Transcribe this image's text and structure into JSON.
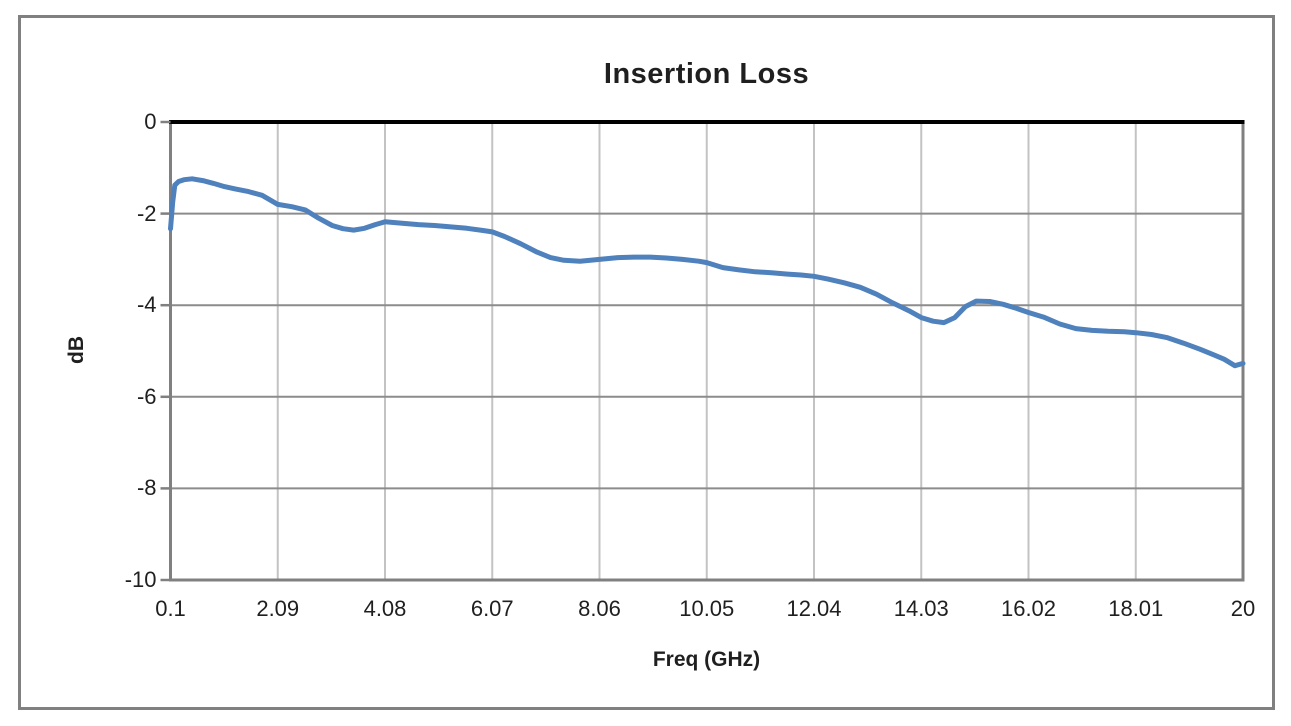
{
  "chart_data": {
    "type": "line",
    "title": "Insertion Loss",
    "xlabel": "Freq (GHz)",
    "ylabel": "dB",
    "x_tick_labels": [
      "0.1",
      "2.09",
      "4.08",
      "6.07",
      "8.06",
      "10.05",
      "12.04",
      "14.03",
      "16.02",
      "18.01",
      "20"
    ],
    "x_tick_values": [
      0.1,
      2.09,
      4.08,
      6.07,
      8.06,
      10.05,
      12.04,
      14.03,
      16.02,
      18.01,
      20
    ],
    "y_tick_labels": [
      "0",
      "-2",
      "-4",
      "-6",
      "-8",
      "-10"
    ],
    "y_tick_values": [
      0,
      -2,
      -4,
      -6,
      -8,
      -10
    ],
    "xlim": [
      0.1,
      20
    ],
    "ylim": [
      -10,
      0
    ],
    "grid": true,
    "legend": "none",
    "series": [
      {
        "name": "Insertion Loss",
        "color": "#4F81BD",
        "x": [
          0.1,
          0.14,
          0.18,
          0.25,
          0.35,
          0.5,
          0.7,
          0.9,
          1.1,
          1.3,
          1.55,
          1.8,
          2.09,
          2.35,
          2.6,
          2.85,
          3.1,
          3.3,
          3.5,
          3.7,
          3.9,
          4.08,
          4.4,
          4.7,
          5.0,
          5.3,
          5.6,
          5.9,
          6.07,
          6.3,
          6.6,
          6.9,
          7.15,
          7.4,
          7.7,
          8.06,
          8.4,
          8.7,
          9.0,
          9.3,
          9.6,
          9.9,
          10.05,
          10.35,
          10.65,
          10.95,
          11.25,
          11.55,
          11.8,
          12.04,
          12.3,
          12.6,
          12.9,
          13.2,
          13.5,
          13.8,
          14.03,
          14.25,
          14.45,
          14.65,
          14.85,
          15.05,
          15.3,
          15.55,
          15.8,
          16.02,
          16.3,
          16.6,
          16.9,
          17.2,
          17.5,
          17.8,
          18.01,
          18.3,
          18.6,
          18.9,
          19.2,
          19.45,
          19.65,
          19.85,
          20.0
        ],
        "y": [
          -2.33,
          -1.75,
          -1.38,
          -1.3,
          -1.26,
          -1.24,
          -1.28,
          -1.34,
          -1.41,
          -1.46,
          -1.52,
          -1.6,
          -1.8,
          -1.85,
          -1.92,
          -2.1,
          -2.26,
          -2.33,
          -2.36,
          -2.32,
          -2.24,
          -2.18,
          -2.21,
          -2.24,
          -2.26,
          -2.29,
          -2.32,
          -2.37,
          -2.4,
          -2.5,
          -2.66,
          -2.84,
          -2.96,
          -3.02,
          -3.04,
          -3.0,
          -2.96,
          -2.95,
          -2.95,
          -2.97,
          -3.0,
          -3.04,
          -3.07,
          -3.18,
          -3.23,
          -3.27,
          -3.29,
          -3.32,
          -3.34,
          -3.37,
          -3.43,
          -3.51,
          -3.61,
          -3.76,
          -3.95,
          -4.12,
          -4.27,
          -4.35,
          -4.38,
          -4.27,
          -4.03,
          -3.91,
          -3.92,
          -3.98,
          -4.07,
          -4.16,
          -4.26,
          -4.41,
          -4.51,
          -4.55,
          -4.57,
          -4.58,
          -4.6,
          -4.64,
          -4.71,
          -4.83,
          -4.96,
          -5.08,
          -5.18,
          -5.32,
          -5.27
        ]
      }
    ],
    "colors": {
      "line": "#4F81BD",
      "h_gridline": "#8C8C8C",
      "v_gridline": "#C3C3C3",
      "frame": "#808080",
      "zero_axis": "#000000",
      "outer_border": "#808080",
      "text": "#1F1F1F"
    }
  }
}
